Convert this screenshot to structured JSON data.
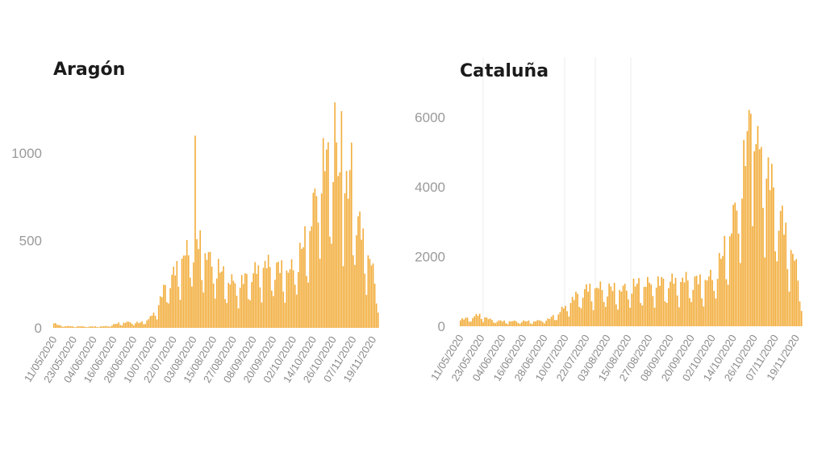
{
  "chart_data": [
    {
      "type": "bar",
      "title": "Aragón",
      "xlabel": "",
      "ylabel": "",
      "ylim": [
        0,
        1300
      ],
      "yticks": [
        0,
        500,
        1000
      ],
      "bar_color": "#f2ad3c",
      "grid": false,
      "tick_labels": [
        "11/05/2020",
        "23/05/2020",
        "04/06/2020",
        "16/06/2020",
        "28/06/2020",
        "10/07/2020",
        "22/07/2020",
        "03/08/2020",
        "15/08/2020",
        "27/08/2020",
        "08/09/2020",
        "20/09/2020",
        "02/10/2020",
        "14/10/2020",
        "26/10/2020",
        "07/11/2020",
        "19/11/2020"
      ],
      "x_start": "11/05/2020",
      "x_end": "22/11/2020",
      "keyframes": [
        [
          "11/05/2020",
          30
        ],
        [
          "14/05/2020",
          15
        ],
        [
          "20/05/2020",
          10
        ],
        [
          "04/06/2020",
          8
        ],
        [
          "12/06/2020",
          10
        ],
        [
          "20/06/2020",
          30
        ],
        [
          "26/06/2020",
          35
        ],
        [
          "02/07/2020",
          30
        ],
        [
          "08/07/2020",
          60
        ],
        [
          "12/07/2020",
          120
        ],
        [
          "17/07/2020",
          250
        ],
        [
          "22/07/2020",
          320
        ],
        [
          "27/07/2020",
          420
        ],
        [
          "31/07/2020",
          460
        ],
        [
          "03/08/2020",
          500
        ],
        [
          "07/08/2020",
          500
        ],
        [
          "12/08/2020",
          420
        ],
        [
          "20/08/2020",
          330
        ],
        [
          "25/08/2020",
          280
        ],
        [
          "31/08/2020",
          270
        ],
        [
          "08/09/2020",
          330
        ],
        [
          "15/09/2020",
          380
        ],
        [
          "22/09/2020",
          360
        ],
        [
          "30/09/2020",
          340
        ],
        [
          "06/10/2020",
          440
        ],
        [
          "12/10/2020",
          600
        ],
        [
          "17/10/2020",
          900
        ],
        [
          "21/10/2020",
          1000
        ],
        [
          "26/10/2020",
          980
        ],
        [
          "31/10/2020",
          900
        ],
        [
          "05/11/2020",
          820
        ],
        [
          "09/11/2020",
          680
        ],
        [
          "14/11/2020",
          500
        ],
        [
          "18/11/2020",
          380
        ],
        [
          "22/11/2020",
          180
        ]
      ],
      "spikes": [
        [
          "04/08/2020",
          1100
        ],
        [
          "27/10/2020",
          1290
        ],
        [
          "31/10/2020",
          1240
        ],
        [
          "06/11/2020",
          1060
        ]
      ]
    },
    {
      "type": "bar",
      "title": "Cataluña",
      "xlabel": "",
      "ylabel": "",
      "ylim": [
        0,
        6800
      ],
      "yticks": [
        0,
        2000,
        4000,
        6000
      ],
      "bar_color": "#f2ad3c",
      "grid": true,
      "tick_labels": [
        "11/05/2020",
        "23/05/2020",
        "04/06/2020",
        "16/06/2020",
        "28/06/2020",
        "10/07/2020",
        "22/07/2020",
        "03/08/2020",
        "15/08/2020",
        "27/08/2020",
        "08/09/2020",
        "20/09/2020",
        "02/10/2020",
        "14/10/2020",
        "26/10/2020",
        "07/11/2020",
        "19/11/2020"
      ],
      "x_start": "11/05/2020",
      "x_end": "22/11/2020",
      "keyframes": [
        [
          "11/05/2020",
          200
        ],
        [
          "16/05/2020",
          250
        ],
        [
          "22/05/2020",
          350
        ],
        [
          "28/05/2020",
          200
        ],
        [
          "04/06/2020",
          150
        ],
        [
          "14/06/2020",
          150
        ],
        [
          "22/06/2020",
          150
        ],
        [
          "30/06/2020",
          200
        ],
        [
          "06/07/2020",
          400
        ],
        [
          "12/07/2020",
          700
        ],
        [
          "18/07/2020",
          1000
        ],
        [
          "24/07/2020",
          1150
        ],
        [
          "01/08/2020",
          1150
        ],
        [
          "10/08/2020",
          1100
        ],
        [
          "20/08/2020",
          1250
        ],
        [
          "30/08/2020",
          1300
        ],
        [
          "08/09/2020",
          1350
        ],
        [
          "18/09/2020",
          1400
        ],
        [
          "26/09/2020",
          1350
        ],
        [
          "02/10/2020",
          1500
        ],
        [
          "07/10/2020",
          2000
        ],
        [
          "12/10/2020",
          2800
        ],
        [
          "16/10/2020",
          3700
        ],
        [
          "20/10/2020",
          4800
        ],
        [
          "23/10/2020",
          5800
        ],
        [
          "26/10/2020",
          5900
        ],
        [
          "30/10/2020",
          5300
        ],
        [
          "03/11/2020",
          4600
        ],
        [
          "08/11/2020",
          3700
        ],
        [
          "13/11/2020",
          2800
        ],
        [
          "18/11/2020",
          2000
        ],
        [
          "22/11/2020",
          900
        ]
      ],
      "spikes": [
        [
          "24/10/2020",
          6100
        ],
        [
          "28/10/2020",
          5750
        ]
      ]
    }
  ]
}
